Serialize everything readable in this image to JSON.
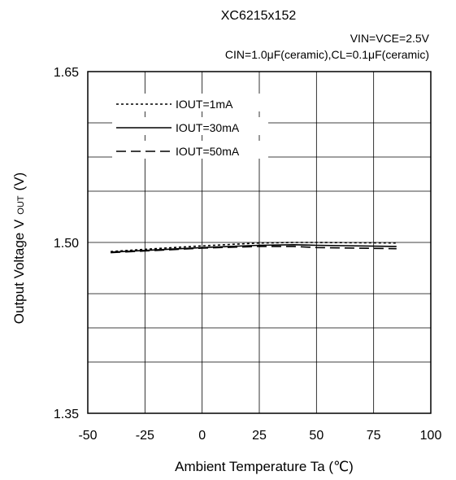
{
  "chart_data": {
    "type": "line",
    "title": "XC6215x152",
    "conditions": [
      "VIN=VCE=2.5V",
      "CIN=1.0μF(ceramic),CL=0.1μF(ceramic)"
    ],
    "xlabel": "Ambient Temperature Ta (℃)",
    "ylabel": "Output Voltage V",
    "ylabel_sub": "OUT",
    "ylabel_unit": "(V)",
    "xlim": [
      -50,
      100
    ],
    "ylim": [
      1.35,
      1.65
    ],
    "x_ticks": [
      -50,
      -25,
      0,
      25,
      50,
      75,
      100
    ],
    "y_ticks": [
      1.35,
      1.5,
      1.65
    ],
    "y_tick_labels": [
      "1.35",
      "1.50",
      "1.65"
    ],
    "y_gridlines": [
      1.35,
      1.395,
      1.425,
      1.455,
      1.5,
      1.545,
      1.575,
      1.605,
      1.65
    ],
    "grid": true,
    "legend_placement": "top-left",
    "series": [
      {
        "name": "IOUT=1mA",
        "style": "dotted",
        "x": [
          -40,
          -25,
          0,
          25,
          40,
          50,
          85
        ],
        "values": [
          1.492,
          1.494,
          1.497,
          1.4995,
          1.5,
          1.5,
          1.4995
        ]
      },
      {
        "name": "IOUT=30mA",
        "style": "solid",
        "x": [
          -40,
          -25,
          0,
          25,
          40,
          50,
          85
        ],
        "values": [
          1.4915,
          1.493,
          1.4955,
          1.4975,
          1.498,
          1.4975,
          1.4965
        ]
      },
      {
        "name": "IOUT=50mA",
        "style": "dashed",
        "x": [
          -40,
          -25,
          0,
          25,
          40,
          50,
          85
        ],
        "values": [
          1.491,
          1.4925,
          1.495,
          1.4965,
          1.4965,
          1.4955,
          1.4945
        ]
      }
    ]
  }
}
